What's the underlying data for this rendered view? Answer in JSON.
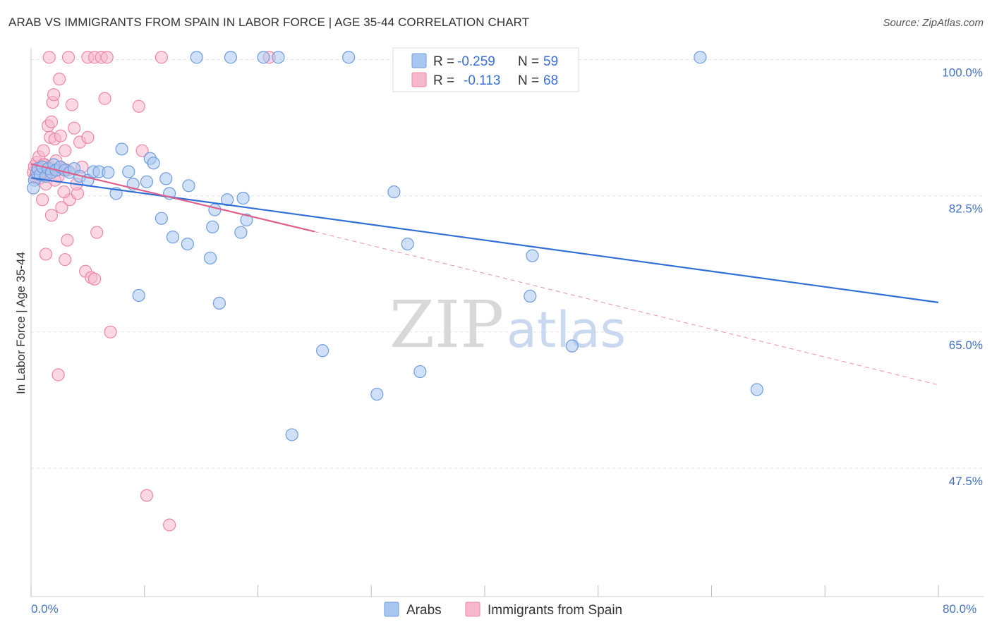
{
  "header": {
    "title": "ARAB VS IMMIGRANTS FROM SPAIN IN LABOR FORCE | AGE 35-44 CORRELATION CHART",
    "source": "Source: ZipAtlas.com"
  },
  "watermark": {
    "zip": "ZIP",
    "atlas": "atlas"
  },
  "legend_top": [
    {
      "r_label": "R =",
      "r_value": "-0.259",
      "n_label": "N =",
      "n_value": "59"
    },
    {
      "r_label": "R =",
      "r_value": "-0.113",
      "n_label": "N =",
      "n_value": "68"
    }
  ],
  "legend_bottom": [
    "Arabs",
    "Immigrants from Spain"
  ],
  "colors": {
    "arabs_fill": "#a9c6f0",
    "arabs_stroke": "#6f9ddf",
    "arabs_line": "#2f6fd6",
    "spain_fill": "#f7b8cb",
    "spain_stroke": "#ee87a8",
    "spain_line": "#e0608c",
    "tick_text": "#4472c4",
    "grid": "#e2e2e2"
  },
  "chart_data": {
    "type": "scatter",
    "title": "ARAB VS IMMIGRANTS FROM SPAIN IN LABOR FORCE | AGE 35-44 CORRELATION CHART",
    "xlabel": "",
    "ylabel": "In Labor Force | Age 35-44",
    "xlim": [
      0,
      80
    ],
    "ylim": [
      31,
      101.5
    ],
    "x_tick_labels": [
      "0.0%",
      "80.0%"
    ],
    "y_ticks": [
      47.5,
      65.0,
      82.5,
      100.0
    ],
    "y_tick_labels": [
      "47.5%",
      "65.0%",
      "82.5%",
      "100.0%"
    ],
    "grid": true,
    "series": [
      {
        "name": "Arabs",
        "r": -0.259,
        "n": 59,
        "trend": {
          "x": [
            0,
            80
          ],
          "y": [
            84.8,
            68.8
          ]
        },
        "points": [
          [
            0.3,
            84.5
          ],
          [
            0.5,
            85.5
          ],
          [
            0.6,
            86.0
          ],
          [
            0.8,
            85.2
          ],
          [
            1.0,
            86.2
          ],
          [
            1.3,
            85.0
          ],
          [
            1.5,
            86.0
          ],
          [
            1.8,
            85.5
          ],
          [
            2.0,
            86.5
          ],
          [
            2.2,
            85.8
          ],
          [
            2.6,
            86.2
          ],
          [
            3.0,
            85.8
          ],
          [
            3.4,
            85.5
          ],
          [
            3.8,
            86.0
          ],
          [
            4.3,
            85.0
          ],
          [
            5.0,
            84.5
          ],
          [
            5.5,
            85.6
          ],
          [
            6.0,
            85.6
          ],
          [
            6.8,
            85.5
          ],
          [
            7.5,
            82.8
          ],
          [
            8.0,
            88.5
          ],
          [
            8.6,
            85.6
          ],
          [
            9.0,
            84.0
          ],
          [
            10.2,
            84.3
          ],
          [
            10.5,
            87.3
          ],
          [
            10.8,
            86.7
          ],
          [
            11.5,
            79.6
          ],
          [
            11.9,
            84.7
          ],
          [
            12.2,
            82.8
          ],
          [
            12.5,
            77.2
          ],
          [
            13.8,
            76.3
          ],
          [
            13.9,
            83.8
          ],
          [
            14.6,
            100.3
          ],
          [
            15.8,
            74.5
          ],
          [
            16.2,
            80.7
          ],
          [
            16.6,
            68.7
          ],
          [
            17.3,
            82.0
          ],
          [
            17.6,
            100.3
          ],
          [
            18.5,
            77.8
          ],
          [
            18.7,
            82.2
          ],
          [
            19.0,
            79.4
          ],
          [
            20.5,
            100.3
          ],
          [
            21.8,
            100.3
          ],
          [
            23.0,
            51.8
          ],
          [
            25.7,
            62.6
          ],
          [
            28.0,
            100.3
          ],
          [
            30.5,
            57.0
          ],
          [
            32.0,
            83.0
          ],
          [
            33.2,
            76.3
          ],
          [
            34.3,
            59.9
          ],
          [
            44.0,
            69.6
          ],
          [
            44.2,
            74.8
          ],
          [
            47.3,
            100.3
          ],
          [
            47.7,
            63.2
          ],
          [
            59.0,
            100.3
          ],
          [
            64.0,
            57.6
          ],
          [
            9.5,
            69.7
          ],
          [
            16.0,
            78.5
          ],
          [
            0.2,
            83.5
          ]
        ]
      },
      {
        "name": "Immigrants from Spain",
        "r": -0.113,
        "n": 68,
        "trend": {
          "x": [
            0,
            25
          ],
          "y": [
            86.6,
            77.9
          ]
        },
        "trend_ext": {
          "x": [
            25,
            80
          ],
          "y": [
            77.9,
            58.2
          ]
        },
        "points": [
          [
            0.2,
            85.5
          ],
          [
            0.3,
            86.3
          ],
          [
            0.4,
            85.0
          ],
          [
            0.5,
            86.8
          ],
          [
            0.6,
            85.2
          ],
          [
            0.7,
            87.5
          ],
          [
            0.8,
            84.8
          ],
          [
            0.9,
            86.0
          ],
          [
            1.0,
            85.5
          ],
          [
            1.1,
            88.3
          ],
          [
            1.2,
            86.5
          ],
          [
            1.3,
            84.0
          ],
          [
            1.4,
            85.8
          ],
          [
            1.5,
            91.5
          ],
          [
            1.6,
            86.2
          ],
          [
            1.7,
            90.0
          ],
          [
            1.8,
            92.0
          ],
          [
            1.9,
            94.5
          ],
          [
            2.0,
            95.5
          ],
          [
            2.1,
            89.8
          ],
          [
            2.2,
            87.0
          ],
          [
            2.3,
            85.8
          ],
          [
            2.4,
            85.0
          ],
          [
            2.5,
            97.5
          ],
          [
            2.6,
            90.2
          ],
          [
            2.7,
            81.0
          ],
          [
            2.8,
            86.0
          ],
          [
            3.0,
            88.3
          ],
          [
            3.2,
            76.8
          ],
          [
            3.4,
            82.0
          ],
          [
            3.6,
            94.2
          ],
          [
            3.8,
            91.2
          ],
          [
            4.1,
            82.8
          ],
          [
            4.3,
            89.4
          ],
          [
            4.5,
            86.2
          ],
          [
            4.8,
            72.8
          ],
          [
            5.0,
            90.0
          ],
          [
            5.3,
            72.0
          ],
          [
            5.6,
            71.8
          ],
          [
            5.8,
            77.8
          ],
          [
            6.5,
            95.0
          ],
          [
            7.0,
            65.0
          ],
          [
            1.0,
            82.0
          ],
          [
            1.3,
            75.0
          ],
          [
            1.8,
            80.0
          ],
          [
            2.4,
            59.5
          ],
          [
            3.0,
            74.3
          ],
          [
            4.0,
            84.0
          ],
          [
            1.6,
            100.3
          ],
          [
            3.3,
            100.3
          ],
          [
            5.0,
            100.3
          ],
          [
            5.6,
            100.3
          ],
          [
            6.2,
            100.3
          ],
          [
            6.7,
            100.3
          ],
          [
            9.5,
            94.0
          ],
          [
            9.8,
            88.3
          ],
          [
            10.2,
            44.0
          ],
          [
            11.5,
            100.3
          ],
          [
            12.2,
            40.2
          ],
          [
            21.0,
            100.3
          ],
          [
            3.2,
            85.8
          ],
          [
            2.1,
            84.5
          ],
          [
            1.1,
            86.5
          ],
          [
            0.8,
            85.5
          ],
          [
            0.6,
            86.0
          ],
          [
            0.4,
            84.8
          ],
          [
            2.9,
            83.0
          ],
          [
            1.5,
            86.0
          ]
        ]
      }
    ]
  }
}
